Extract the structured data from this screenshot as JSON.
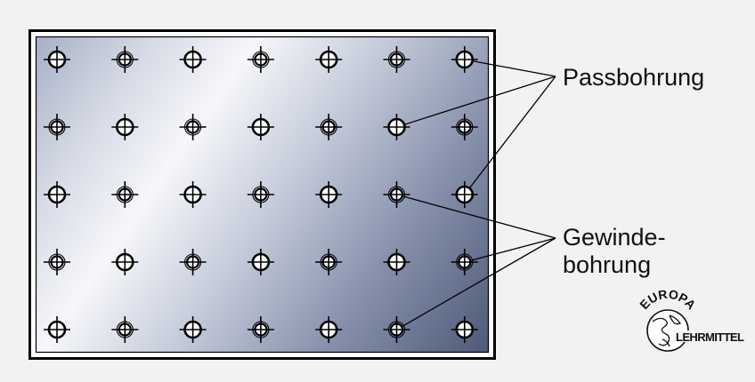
{
  "figure": {
    "grid": {
      "rows": 5,
      "columns": 7
    },
    "hole_pattern": [
      [
        "pass",
        "thread",
        "pass",
        "thread",
        "pass",
        "thread",
        "pass"
      ],
      [
        "thread",
        "pass",
        "thread",
        "pass",
        "thread",
        "pass",
        "thread"
      ],
      [
        "pass",
        "thread",
        "pass",
        "thread",
        "pass",
        "thread",
        "pass"
      ],
      [
        "thread",
        "pass",
        "thread",
        "pass",
        "thread",
        "pass",
        "thread"
      ],
      [
        "pass",
        "thread",
        "pass",
        "thread",
        "pass",
        "thread",
        "pass"
      ]
    ],
    "labels": {
      "passbohrung": "Passbohrung",
      "gewinde_line1": "Gewinde-",
      "gewinde_line2": "bohrung"
    },
    "leader_targets": {
      "passbohrung": [
        [
          0,
          6
        ],
        [
          1,
          5
        ],
        [
          2,
          6
        ]
      ],
      "gewindebohrung": [
        [
          2,
          5
        ],
        [
          3,
          6
        ],
        [
          4,
          5
        ]
      ]
    }
  },
  "logo": {
    "top_text": "EUROPA",
    "bottom_text": "LEHRMITTEL"
  },
  "colors": {
    "background": "#f2f2f2",
    "plate_light": "#f6f7fa",
    "plate_dark": "#4e5a77",
    "stroke": "#000000"
  }
}
